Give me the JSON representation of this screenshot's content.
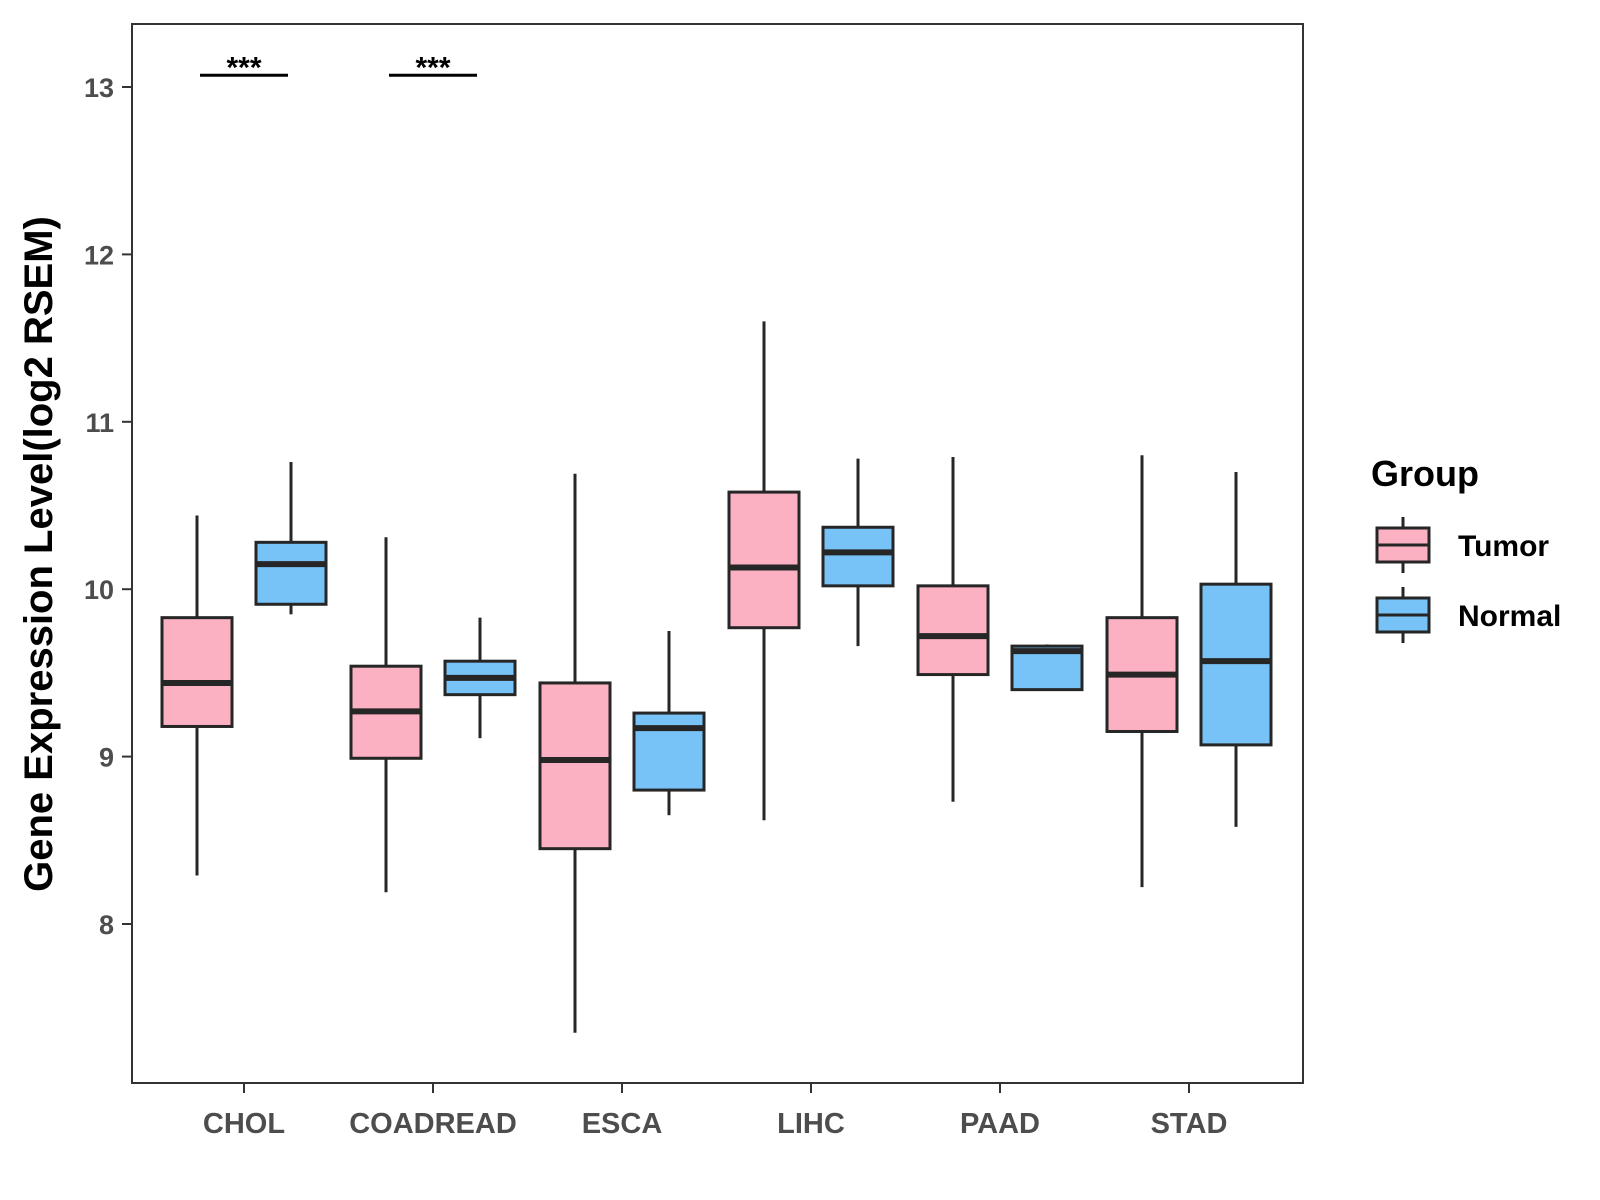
{
  "chart_data": {
    "type": "boxplot",
    "title": "",
    "xlabel": "",
    "ylabel": "Gene Expression Level(log2 RSEM)",
    "ylim": [
      7.1,
      13.4
    ],
    "yticks": [
      8,
      9,
      10,
      11,
      12,
      13
    ],
    "grid": false,
    "categories": [
      "CHOL",
      "COADREAD",
      "ESCA",
      "LIHC",
      "PAAD",
      "STAD"
    ],
    "legend": {
      "title": "Group",
      "position": "right",
      "entries": [
        {
          "name": "Tumor",
          "color": "#FBB1C2"
        },
        {
          "name": "Normal",
          "color": "#77C2F7"
        }
      ]
    },
    "series": [
      {
        "name": "Tumor",
        "color": "#FBB1C2",
        "boxes": [
          {
            "category": "CHOL",
            "whisker_low": 8.29,
            "q1": 9.18,
            "median": 9.44,
            "q3": 9.83,
            "whisker_high": 10.44
          },
          {
            "category": "COADREAD",
            "whisker_low": 8.19,
            "q1": 8.99,
            "median": 9.27,
            "q3": 9.54,
            "whisker_high": 10.31
          },
          {
            "category": "ESCA",
            "whisker_low": 7.35,
            "q1": 8.45,
            "median": 8.98,
            "q3": 9.44,
            "whisker_high": 10.69
          },
          {
            "category": "LIHC",
            "whisker_low": 8.62,
            "q1": 9.77,
            "median": 10.13,
            "q3": 10.58,
            "whisker_high": 11.6
          },
          {
            "category": "PAAD",
            "whisker_low": 8.73,
            "q1": 9.49,
            "median": 9.72,
            "q3": 10.02,
            "whisker_high": 10.79
          },
          {
            "category": "STAD",
            "whisker_low": 8.22,
            "q1": 9.15,
            "median": 9.49,
            "q3": 9.83,
            "whisker_high": 10.8
          }
        ]
      },
      {
        "name": "Normal",
        "color": "#77C2F7",
        "boxes": [
          {
            "category": "CHOL",
            "whisker_low": 9.85,
            "q1": 9.91,
            "median": 10.15,
            "q3": 10.28,
            "whisker_high": 10.76
          },
          {
            "category": "COADREAD",
            "whisker_low": 9.11,
            "q1": 9.37,
            "median": 9.47,
            "q3": 9.57,
            "whisker_high": 9.83
          },
          {
            "category": "ESCA",
            "whisker_low": 8.65,
            "q1": 8.8,
            "median": 9.17,
            "q3": 9.26,
            "whisker_high": 9.75
          },
          {
            "category": "LIHC",
            "whisker_low": 9.66,
            "q1": 10.02,
            "median": 10.22,
            "q3": 10.37,
            "whisker_high": 10.78
          },
          {
            "category": "PAAD",
            "whisker_low": 9.4,
            "q1": 9.4,
            "median": 9.63,
            "q3": 9.66,
            "whisker_high": 9.67
          },
          {
            "category": "STAD",
            "whisker_low": 8.58,
            "q1": 9.07,
            "median": 9.57,
            "q3": 10.03,
            "whisker_high": 10.7
          }
        ]
      }
    ],
    "annotations": [
      {
        "category": "CHOL",
        "label": "***",
        "y": 13.07
      },
      {
        "category": "COADREAD",
        "label": "***",
        "y": 13.07
      }
    ]
  }
}
